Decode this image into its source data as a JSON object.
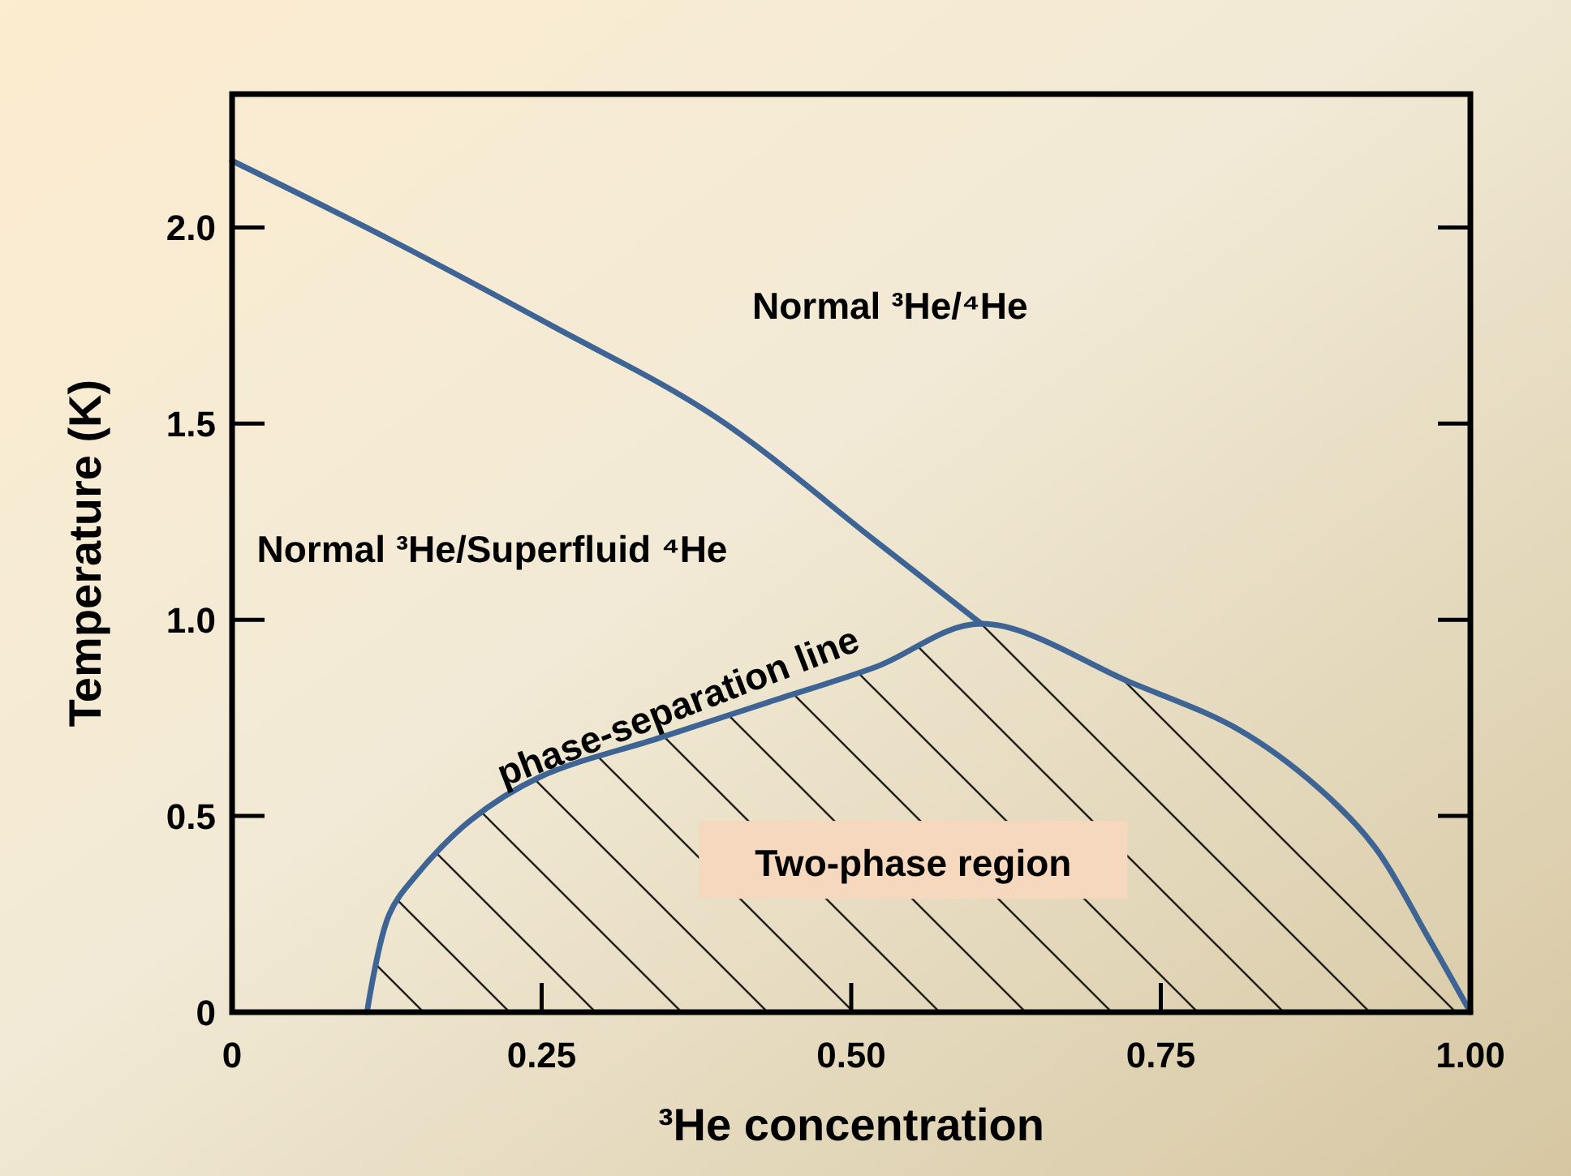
{
  "chart_data": {
    "type": "line",
    "xlabel": "³He concentration",
    "ylabel": "Temperature (K)",
    "xlim": [
      0,
      1
    ],
    "ylim": [
      0,
      2.34
    ],
    "xticks": [
      0,
      0.25,
      {
        "value": 0.5,
        "label": "0.50"
      },
      0.75,
      {
        "value": 1,
        "label": "1.00"
      }
    ],
    "yticks": [
      0,
      0.5,
      {
        "value": 1,
        "label": "1.0"
      },
      1.5,
      {
        "value": 2,
        "label": "2.0"
      }
    ],
    "grid": false,
    "marker": "none",
    "line_style": "solid",
    "series": [
      {
        "color": "#3d6494",
        "x": [
          0,
          0.127,
          0.258,
          0.389,
          0.52,
          0.605
        ],
        "values": [
          2.17,
          1.97,
          1.75,
          1.52,
          1.2,
          0.99
        ]
      },
      {
        "color": "#3d6494",
        "x": [
          0.109,
          0.127,
          0.149,
          0.193,
          0.249,
          0.346,
          0.433,
          0.52,
          0.605,
          0.726,
          0.813,
          0.878,
          0.923,
          0.966,
          1
        ],
        "values": [
          0,
          0.25,
          0.35,
          0.49,
          0.6,
          0.7,
          0.79,
          0.88,
          0.99,
          0.84,
          0.72,
          0.57,
          0.42,
          0.19,
          0
        ]
      }
    ],
    "annotations": [
      "Normal ³He/⁴He",
      "Normal ³He/Superfluid ⁴He",
      "phase-separation line",
      "Two-phase region"
    ]
  }
}
